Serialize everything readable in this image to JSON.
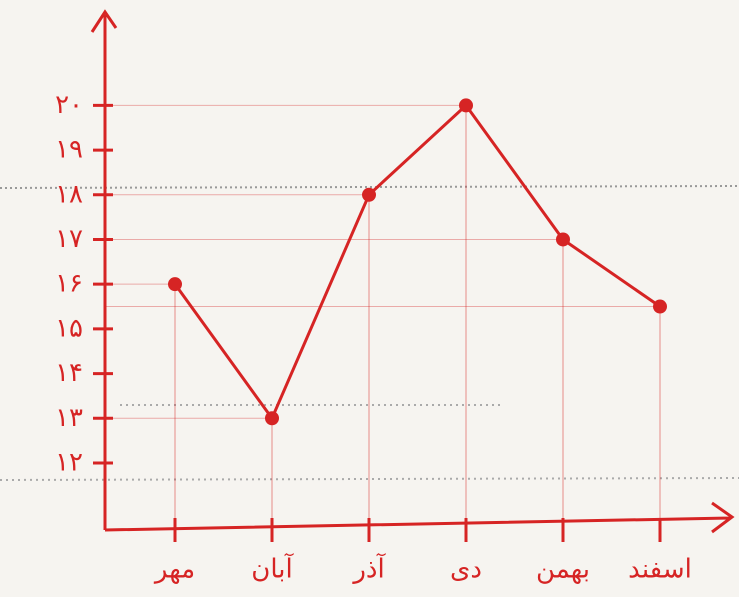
{
  "chart_data": {
    "type": "line",
    "categories": [
      "مهر",
      "آبان",
      "آذر",
      "دی",
      "بهمن",
      "اسفند"
    ],
    "values": [
      16,
      13,
      18,
      20,
      17,
      15.5
    ],
    "color": "#d62424",
    "ylim": [
      10.5,
      22
    ],
    "yticks": [
      {
        "value": 12,
        "label": "۱۲"
      },
      {
        "value": 13,
        "label": "۱۳"
      },
      {
        "value": 14,
        "label": "۱۴"
      },
      {
        "value": 15,
        "label": "۱۵"
      },
      {
        "value": 16,
        "label": "۱۶"
      },
      {
        "value": 17,
        "label": "۱۷"
      },
      {
        "value": 18,
        "label": "۱۸"
      },
      {
        "value": 19,
        "label": "۱۹"
      },
      {
        "value": 20,
        "label": "۲۰"
      }
    ],
    "grid": true
  }
}
